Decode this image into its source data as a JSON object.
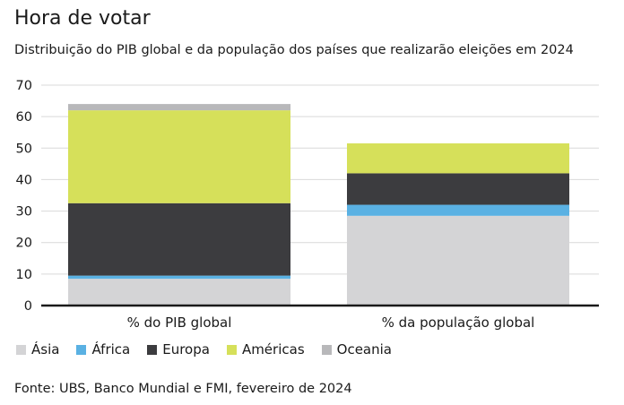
{
  "title": "Hora de votar",
  "subtitle": "Distribuição do PIB global e da população dos países que realizarão eleições em 2024",
  "source": "Fonte: UBS, Banco Mundial e FMI, fevereiro de 2024",
  "chart_data": {
    "type": "bar",
    "stacked": true,
    "categories": [
      "% do PIB global",
      "% da população global"
    ],
    "series": [
      {
        "name": "Ásia",
        "color": "#d4d4d6",
        "values": [
          8.5,
          28.5
        ]
      },
      {
        "name": "África",
        "color": "#5ab1e3",
        "values": [
          1.0,
          3.5
        ]
      },
      {
        "name": "Europa",
        "color": "#3c3c3f",
        "values": [
          23.0,
          10.0
        ]
      },
      {
        "name": "Américas",
        "color": "#d6e05a",
        "values": [
          29.5,
          9.5
        ]
      },
      {
        "name": "Oceania",
        "color": "#b8b8ba",
        "values": [
          2.0,
          0
        ]
      }
    ],
    "ylim": [
      0,
      70
    ],
    "yticks": [
      "0",
      "10",
      "20",
      "30",
      "40",
      "50",
      "60",
      "70"
    ],
    "grid": true,
    "legend": "bottom-left"
  }
}
